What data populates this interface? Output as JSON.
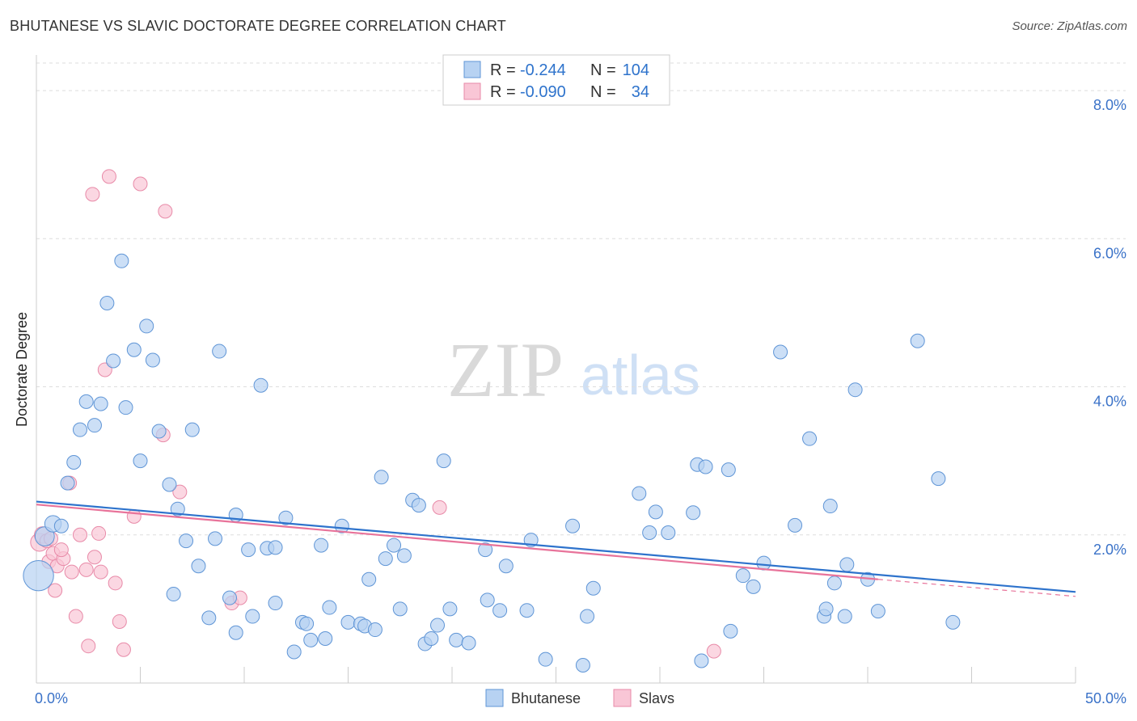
{
  "title": "BHUTANESE VS SLAVIC DOCTORATE DEGREE CORRELATION CHART",
  "source": "Source: ZipAtlas.com",
  "watermark": {
    "part1": "ZIP",
    "part2": "atlas"
  },
  "colors": {
    "blue_fill": "#b7d2f2",
    "blue_stroke": "#5f95d6",
    "blue_line": "#2e73cc",
    "pink_fill": "#f9c6d6",
    "pink_stroke": "#e88aa8",
    "pink_line": "#e8739a",
    "grid": "#dddddd",
    "axis_text": "#3a72c8"
  },
  "legend": {
    "blue": {
      "r_label": "R =",
      "r_value": "-0.244",
      "n_label": "N =",
      "n_value": "104"
    },
    "pink": {
      "r_label": "R =",
      "r_value": "-0.090",
      "n_label": "N =",
      "n_value": "34"
    }
  },
  "chart_data": {
    "type": "scatter",
    "title": "BHUTANESE VS SLAVIC DOCTORATE DEGREE CORRELATION CHART",
    "xlabel": "",
    "ylabel": "Doctorate Degree",
    "xlim": [
      0,
      50
    ],
    "ylim": [
      0,
      8.35
    ],
    "x_tick_labels": [
      {
        "value": 0,
        "label": "0.0%"
      },
      {
        "value": 50,
        "label": "50.0%"
      }
    ],
    "y_tick_labels": [
      {
        "value": 2,
        "label": "2.0%"
      },
      {
        "value": 4,
        "label": "4.0%"
      },
      {
        "value": 6,
        "label": "6.0%"
      },
      {
        "value": 8,
        "label": "8.0%"
      }
    ],
    "grid": true,
    "legend_position": "bottom",
    "series": [
      {
        "name": "Bhutanese",
        "color": "blue",
        "trend": {
          "x0": 0,
          "y0": 2.45,
          "x1": 50,
          "y1": 1.23
        },
        "points": [
          [
            0.1,
            1.45,
            2.2
          ],
          [
            0.4,
            1.98,
            1.4
          ],
          [
            0.8,
            2.15,
            1.2
          ],
          [
            1.2,
            2.12,
            1
          ],
          [
            1.5,
            2.7,
            1
          ],
          [
            1.8,
            2.98,
            1
          ],
          [
            2.1,
            3.42,
            1
          ],
          [
            2.4,
            3.8,
            1
          ],
          [
            2.8,
            3.48,
            1
          ],
          [
            3.1,
            3.77,
            1
          ],
          [
            3.4,
            5.13,
            1
          ],
          [
            3.7,
            4.35,
            1
          ],
          [
            4.1,
            5.7,
            1
          ],
          [
            4.3,
            3.72,
            1
          ],
          [
            4.7,
            4.5,
            1
          ],
          [
            5.0,
            3.0,
            1
          ],
          [
            5.3,
            4.82,
            1
          ],
          [
            5.6,
            4.36,
            1
          ],
          [
            5.9,
            3.4,
            1
          ],
          [
            6.4,
            2.68,
            1
          ],
          [
            6.6,
            1.2,
            1
          ],
          [
            6.8,
            2.35,
            1
          ],
          [
            7.2,
            1.92,
            1
          ],
          [
            7.5,
            3.42,
            1
          ],
          [
            7.8,
            1.58,
            1
          ],
          [
            8.3,
            0.88,
            1
          ],
          [
            8.6,
            1.95,
            1
          ],
          [
            8.8,
            4.48,
            1
          ],
          [
            9.3,
            1.15,
            1
          ],
          [
            9.6,
            2.27,
            1
          ],
          [
            9.6,
            0.68,
            1
          ],
          [
            10.4,
            0.9,
            1
          ],
          [
            10.8,
            4.02,
            1
          ],
          [
            10.2,
            1.8,
            1
          ],
          [
            11.1,
            1.82,
            1
          ],
          [
            11.5,
            1.83,
            1
          ],
          [
            11.5,
            1.08,
            1
          ],
          [
            12.0,
            2.23,
            1
          ],
          [
            12.4,
            0.42,
            1
          ],
          [
            12.8,
            0.82,
            1
          ],
          [
            13.0,
            0.8,
            1
          ],
          [
            13.2,
            0.58,
            1
          ],
          [
            13.7,
            1.86,
            1
          ],
          [
            13.9,
            0.6,
            1
          ],
          [
            14.1,
            1.02,
            1
          ],
          [
            14.7,
            2.12,
            1
          ],
          [
            15.0,
            0.82,
            1
          ],
          [
            15.6,
            0.8,
            1
          ],
          [
            15.8,
            0.77,
            1
          ],
          [
            16.0,
            1.4,
            1
          ],
          [
            16.3,
            0.72,
            1
          ],
          [
            16.6,
            2.78,
            1
          ],
          [
            16.8,
            1.68,
            1
          ],
          [
            17.2,
            1.86,
            1
          ],
          [
            17.5,
            1.0,
            1
          ],
          [
            17.7,
            1.72,
            1
          ],
          [
            18.1,
            2.47,
            1
          ],
          [
            18.4,
            2.4,
            1
          ],
          [
            18.7,
            0.53,
            1
          ],
          [
            19.0,
            0.6,
            1
          ],
          [
            19.3,
            0.78,
            1
          ],
          [
            19.6,
            3.0,
            1
          ],
          [
            19.9,
            1.0,
            1
          ],
          [
            20.2,
            0.58,
            1
          ],
          [
            20.8,
            0.54,
            1
          ],
          [
            21.6,
            1.8,
            1
          ],
          [
            21.7,
            1.12,
            1
          ],
          [
            22.3,
            0.98,
            1
          ],
          [
            22.6,
            1.58,
            1
          ],
          [
            23.6,
            0.98,
            1
          ],
          [
            23.8,
            1.93,
            1
          ],
          [
            24.5,
            0.32,
            1
          ],
          [
            25.8,
            2.12,
            1
          ],
          [
            26.3,
            0.24,
            1
          ],
          [
            26.5,
            0.9,
            1
          ],
          [
            26.8,
            1.28,
            1
          ],
          [
            29.0,
            2.56,
            1
          ],
          [
            29.5,
            2.03,
            1
          ],
          [
            29.8,
            2.31,
            1
          ],
          [
            30.4,
            2.03,
            1
          ],
          [
            31.6,
            2.3,
            1
          ],
          [
            31.8,
            2.95,
            1
          ],
          [
            32.0,
            0.3,
            1
          ],
          [
            32.2,
            2.92,
            1
          ],
          [
            33.3,
            2.88,
            1
          ],
          [
            33.4,
            0.7,
            1
          ],
          [
            34.0,
            1.45,
            1
          ],
          [
            34.5,
            1.3,
            1
          ],
          [
            35.0,
            1.62,
            1
          ],
          [
            35.8,
            4.47,
            1
          ],
          [
            36.5,
            2.13,
            1
          ],
          [
            37.2,
            3.3,
            1
          ],
          [
            37.9,
            0.9,
            1
          ],
          [
            38.2,
            2.39,
            1
          ],
          [
            38.4,
            1.35,
            1
          ],
          [
            38.9,
            0.9,
            1
          ],
          [
            39.0,
            1.6,
            1
          ],
          [
            39.4,
            3.96,
            1
          ],
          [
            40.5,
            0.97,
            1
          ],
          [
            42.4,
            4.62,
            1
          ],
          [
            43.4,
            2.76,
            1
          ],
          [
            44.1,
            0.82,
            1
          ],
          [
            38.0,
            1.0,
            1
          ],
          [
            40.0,
            1.4,
            1
          ]
        ]
      },
      {
        "name": "Slavs",
        "color": "pink",
        "trend": {
          "x0": 0,
          "y0": 2.41,
          "x1": 40.5,
          "y1": 1.4,
          "dash_x1": 50,
          "dash_y1": 1.17
        },
        "points": [
          [
            0.15,
            1.9,
            1.3
          ],
          [
            0.3,
            2.0,
            1.2
          ],
          [
            0.5,
            1.92,
            1
          ],
          [
            0.6,
            1.64,
            1
          ],
          [
            0.8,
            1.75,
            1
          ],
          [
            0.9,
            1.25,
            1
          ],
          [
            1.0,
            1.58,
            1
          ],
          [
            1.3,
            1.68,
            1
          ],
          [
            1.6,
            2.7,
            1
          ],
          [
            1.7,
            1.5,
            1
          ],
          [
            1.9,
            0.9,
            1
          ],
          [
            2.1,
            2.0,
            1
          ],
          [
            2.4,
            1.53,
            1
          ],
          [
            2.5,
            0.5,
            1
          ],
          [
            2.7,
            6.6,
            1
          ],
          [
            2.8,
            1.7,
            1
          ],
          [
            3.0,
            2.02,
            1
          ],
          [
            3.1,
            1.5,
            1
          ],
          [
            3.3,
            4.23,
            1
          ],
          [
            3.5,
            6.84,
            1
          ],
          [
            3.8,
            1.35,
            1
          ],
          [
            4.0,
            0.83,
            1
          ],
          [
            4.2,
            0.45,
            1
          ],
          [
            4.7,
            2.25,
            1
          ],
          [
            5.0,
            6.74,
            1
          ],
          [
            6.1,
            3.35,
            1
          ],
          [
            6.2,
            6.37,
            1
          ],
          [
            6.9,
            2.58,
            1
          ],
          [
            9.4,
            1.08,
            1
          ],
          [
            9.8,
            1.15,
            1
          ],
          [
            19.4,
            2.37,
            1
          ],
          [
            32.6,
            0.43,
            1
          ],
          [
            1.2,
            1.8,
            1
          ],
          [
            0.7,
            1.95,
            1
          ]
        ]
      }
    ]
  },
  "bottom_legend": {
    "blue_label": "Bhutanese",
    "pink_label": "Slavs"
  }
}
